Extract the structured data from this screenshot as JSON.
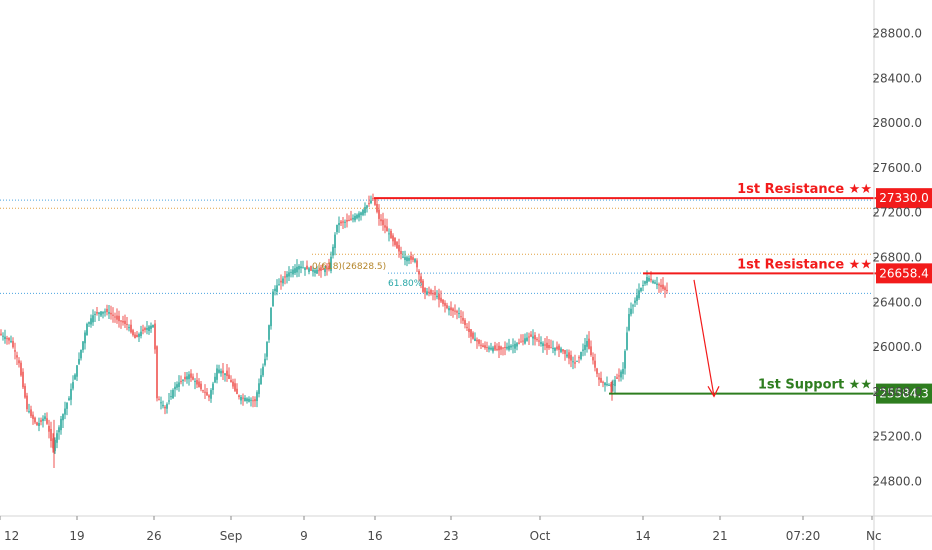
{
  "chart_data": {
    "type": "candlestick",
    "y_axis": {
      "range": [
        24500,
        29100
      ],
      "ticks": [
        "24800.0",
        "25200.0",
        "25600.0",
        "26000.0",
        "26400.0",
        "26800.0",
        "27200.0",
        "27600.0",
        "28000.0",
        "28400.0",
        "28800.0"
      ],
      "tick_values": [
        24800,
        25200,
        25600,
        26000,
        26400,
        26800,
        27200,
        27600,
        28000,
        28400,
        28800
      ]
    },
    "x_axis": {
      "ticks": [
        "12",
        "19",
        "26",
        "Sep",
        "9",
        "16",
        "23",
        "Oct",
        "14",
        "21",
        "07:20",
        "Nc"
      ],
      "tick_index": [
        0,
        77,
        154,
        231,
        304,
        375,
        451,
        540,
        643,
        720,
        803,
        872
      ]
    },
    "price_path": [
      [
        0,
        26120
      ],
      [
        12,
        26050
      ],
      [
        20,
        25850
      ],
      [
        28,
        25450
      ],
      [
        38,
        25300
      ],
      [
        46,
        25380
      ],
      [
        54,
        25100
      ],
      [
        62,
        25350
      ],
      [
        70,
        25550
      ],
      [
        80,
        25900
      ],
      [
        88,
        26200
      ],
      [
        96,
        26300
      ],
      [
        108,
        26320
      ],
      [
        118,
        26250
      ],
      [
        128,
        26200
      ],
      [
        136,
        26080
      ],
      [
        144,
        26150
      ],
      [
        155,
        26200
      ],
      [
        158,
        25550
      ],
      [
        166,
        25450
      ],
      [
        176,
        25650
      ],
      [
        190,
        25750
      ],
      [
        200,
        25650
      ],
      [
        210,
        25550
      ],
      [
        218,
        25800
      ],
      [
        228,
        25750
      ],
      [
        240,
        25550
      ],
      [
        256,
        25520
      ],
      [
        266,
        25900
      ],
      [
        274,
        26500
      ],
      [
        288,
        26650
      ],
      [
        300,
        26720
      ],
      [
        316,
        26680
      ],
      [
        330,
        26700
      ],
      [
        338,
        27100
      ],
      [
        350,
        27130
      ],
      [
        362,
        27200
      ],
      [
        374,
        27330
      ],
      [
        380,
        27150
      ],
      [
        392,
        26980
      ],
      [
        404,
        26800
      ],
      [
        416,
        26780
      ],
      [
        424,
        26500
      ],
      [
        436,
        26470
      ],
      [
        448,
        26350
      ],
      [
        460,
        26300
      ],
      [
        472,
        26100
      ],
      [
        484,
        26000
      ],
      [
        500,
        25980
      ],
      [
        516,
        26020
      ],
      [
        532,
        26100
      ],
      [
        548,
        26000
      ],
      [
        562,
        25980
      ],
      [
        576,
        25850
      ],
      [
        588,
        26050
      ],
      [
        600,
        25700
      ],
      [
        612,
        25650
      ],
      [
        624,
        25800
      ],
      [
        630,
        26300
      ],
      [
        640,
        26500
      ],
      [
        648,
        26620
      ],
      [
        660,
        26550
      ],
      [
        668,
        26500
      ]
    ],
    "horizontal_lines": [
      {
        "value": 27330.0,
        "label": "1st Resistance ★★",
        "tag": "27330.0",
        "color": "#f21b1b"
      },
      {
        "value": 26658.4,
        "label": "1st Resistance ★★",
        "tag": "26658.4",
        "color": "#f21b1b"
      },
      {
        "value": 25584.3,
        "label": "1st Support ★★",
        "tag": "25584.3",
        "color": "#2e7d1f"
      }
    ],
    "fibonacci": {
      "labels": [
        "0(618)(26828.5)",
        "61.80%"
      ],
      "colors": {
        "zero": "#b5862b",
        "level": "#26a6a6"
      }
    },
    "colors": {
      "up": "#26a69a",
      "down": "#ef5350",
      "blue_dotted": "#4aa3df",
      "orange_dotted": "#e0a040",
      "arrow": "#f21b1b"
    },
    "grid": false
  }
}
